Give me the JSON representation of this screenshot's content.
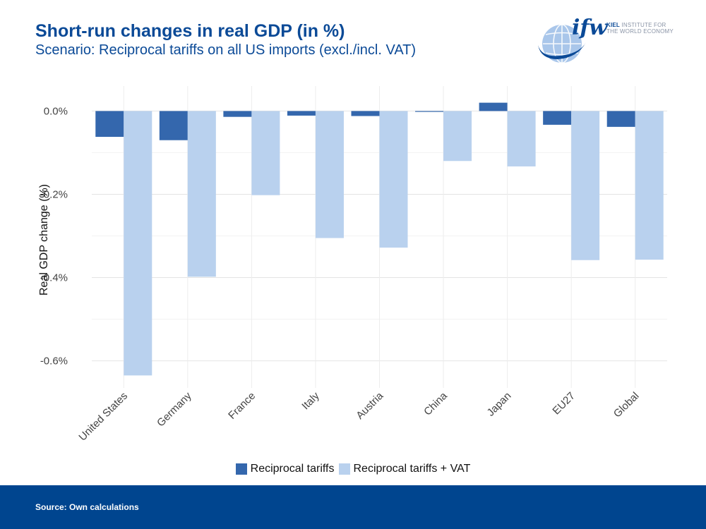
{
  "header": {
    "title": "Short-run changes in real GDP (in %)",
    "subtitle": "Scenario: Reciprocal tariffs on all US imports (excl./incl. VAT)"
  },
  "logo": {
    "brand": "ifw",
    "institute_bold": "KIEL",
    "institute_line1": "INSTITUTE FOR",
    "institute_line2": "THE WORLD ECONOMY"
  },
  "footer": {
    "source": "Source: Own calculations"
  },
  "colors": {
    "dark": "#3467ad",
    "light": "#b9d1ee",
    "brand": "#0b4a97",
    "footer": "#00458f"
  },
  "chart_data": {
    "type": "bar",
    "ylabel": "Real GDP change (%)",
    "xlabel": "",
    "ylim": [
      -0.665,
      0.06
    ],
    "yticks": [
      0.0,
      -0.2,
      -0.4,
      -0.6
    ],
    "ytick_labels": [
      "0.0%",
      "-0.2%",
      "-0.4%",
      "-0.6%"
    ],
    "categories": [
      "United States",
      "Germany",
      "France",
      "Italy",
      "Austria",
      "China",
      "Japan",
      "EU27",
      "Global"
    ],
    "series": [
      {
        "name": "Reciprocal tariffs",
        "values": [
          -0.062,
          -0.07,
          -0.014,
          -0.011,
          -0.012,
          -0.002,
          0.02,
          -0.033,
          -0.038
        ]
      },
      {
        "name": "Reciprocal tariffs + VAT",
        "values": [
          -0.635,
          -0.398,
          -0.202,
          -0.305,
          -0.328,
          -0.12,
          -0.133,
          -0.358,
          -0.357
        ]
      }
    ],
    "legend": "bottom"
  }
}
